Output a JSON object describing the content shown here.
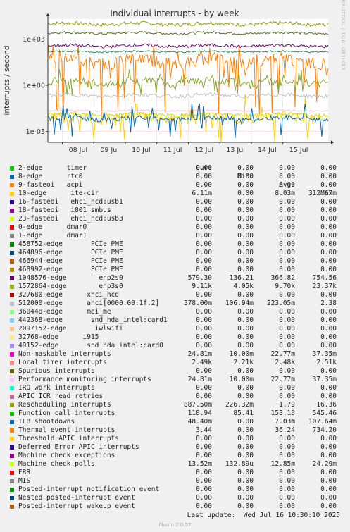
{
  "chart_data": {
    "type": "line",
    "title": "Individual interrupts - by week",
    "ylabel": "interrupts / second",
    "y_scale": "log",
    "ylim": [
      0.0002,
      20000
    ],
    "y_ticks": [
      {
        "value": 1000,
        "label": "1e+03"
      },
      {
        "value": 1,
        "label": "1e+00"
      },
      {
        "value": 0.001,
        "label": "1e-03"
      }
    ],
    "x_range": [
      "2025-07-07T13:00",
      "2025-07-16T10:30"
    ],
    "x_ticks": [
      {
        "date": "2025-07-08",
        "label": "08 Jul"
      },
      {
        "date": "2025-07-09",
        "label": "09 Jul"
      },
      {
        "date": "2025-07-10",
        "label": "10 Jul"
      },
      {
        "date": "2025-07-11",
        "label": "11 Jul"
      },
      {
        "date": "2025-07-12",
        "label": "12 Jul"
      },
      {
        "date": "2025-07-13",
        "label": "13 Jul"
      },
      {
        "date": "2025-07-14",
        "label": "14 Jul"
      },
      {
        "date": "2025-07-15",
        "label": "15 Jul"
      }
    ],
    "grid": true,
    "plotted_series": [
      {
        "name": "1572864-edge",
        "color": "#96a000",
        "level": 9700,
        "spread": 0.12
      },
      {
        "name": "Local timer interrupts",
        "color": "#556b2f",
        "level": 2480,
        "spread": 0.08
      },
      {
        "name": "Thermal event interrupts",
        "color": "#ff7f00",
        "level": 36.24,
        "spread": 0.4,
        "min": 0.003,
        "max": 734.2
      },
      {
        "name": "Rescheduling interrupts",
        "color": "#87a830",
        "level": 1.79,
        "spread": 0.25,
        "min": 0.226,
        "max": 16.36
      },
      {
        "name": "Function call interrupts",
        "color": "#2e8b57",
        "level": 153.18,
        "spread": 0.05
      },
      {
        "name": "1048576-edge",
        "color": "#6a0f6a",
        "level": 366.82,
        "spread": 0.1
      },
      {
        "name": "10-edge",
        "color": "#ffcc00",
        "level": 0.008,
        "spread": 0.3,
        "min": 0.0002,
        "max": 0.313
      },
      {
        "name": "Performance monitoring interrupts",
        "color": "#ffbfef",
        "level": 0.0228,
        "spread": 0.05
      },
      {
        "name": "ahci[0000:00:1f.2]",
        "color": "#c0c0c0",
        "level": 0.223,
        "spread": 0.12
      },
      {
        "name": "Machine check polls",
        "color": "#cce000",
        "level": 0.0128,
        "spread": 0.1
      },
      {
        "name": "TLB shootdowns",
        "color": "#0066b3",
        "level": 0.007,
        "spread": 0.15,
        "min": 0.0003,
        "max": 0.108
      }
    ],
    "legend_header": {
      "cur": "Cur:",
      "min": "Min:",
      "avg": "Avg:",
      "max": "Max:"
    },
    "legend": [
      {
        "label": "2-edge      timer",
        "color": "#00cc00",
        "cur": "0.00",
        "min": "0.00",
        "avg": "0.00",
        "max": "0.00"
      },
      {
        "label": "8-edge      rtc0",
        "color": "#0066b3",
        "cur": "0.00",
        "min": "0.00",
        "avg": "0.00",
        "max": "0.00"
      },
      {
        "label": "9-fasteoi   acpi",
        "color": "#ff8000",
        "cur": "0.00",
        "min": "0.00",
        "avg": "0.00",
        "max": "0.00"
      },
      {
        "label": "10-edge      ite-cir",
        "color": "#ffcc00",
        "cur": "6.11m",
        "min": "0.00",
        "avg": "8.03m",
        "max": "312.67m"
      },
      {
        "label": "16-fasteoi   ehci_hcd:usb1",
        "color": "#330099",
        "cur": "0.00",
        "min": "0.00",
        "avg": "0.00",
        "max": "0.00"
      },
      {
        "label": "18-fasteoi   i801_smbus",
        "color": "#990099",
        "cur": "0.00",
        "min": "0.00",
        "avg": "0.00",
        "max": "0.00"
      },
      {
        "label": "23-fasteoi   ehci_hcd:usb3",
        "color": "#ccff00",
        "cur": "0.00",
        "min": "0.00",
        "avg": "0.00",
        "max": "0.00"
      },
      {
        "label": "0-edge      dmar0",
        "color": "#ff0000",
        "cur": "0.00",
        "min": "0.00",
        "avg": "0.00",
        "max": "0.00"
      },
      {
        "label": "1-edge      dmar1",
        "color": "#808080",
        "cur": "0.00",
        "min": "0.00",
        "avg": "0.00",
        "max": "0.00"
      },
      {
        "label": "458752-edge       PCIe PME",
        "color": "#008f00",
        "cur": "0.00",
        "min": "0.00",
        "avg": "0.00",
        "max": "0.00"
      },
      {
        "label": "464896-edge       PCIe PME",
        "color": "#00487d",
        "cur": "0.00",
        "min": "0.00",
        "avg": "0.00",
        "max": "0.00"
      },
      {
        "label": "466944-edge       PCIe PME",
        "color": "#b35a00",
        "cur": "0.00",
        "min": "0.00",
        "avg": "0.00",
        "max": "0.00"
      },
      {
        "label": "468992-edge       PCIe PME",
        "color": "#b38f00",
        "cur": "0.00",
        "min": "0.00",
        "avg": "0.00",
        "max": "0.00"
      },
      {
        "label": "1048576-edge        enp2s0",
        "color": "#6b006b",
        "cur": "579.30",
        "min": "136.21",
        "avg": "366.82",
        "max": "754.56"
      },
      {
        "label": "1572864-edge        enp3s0",
        "color": "#8fb300",
        "cur": "9.11k",
        "min": "4.05k",
        "avg": "9.70k",
        "max": "23.37k"
      },
      {
        "label": "327680-edge      xhci_hcd",
        "color": "#b30000",
        "cur": "0.00",
        "min": "0.00",
        "avg": "0.00",
        "max": "0.00"
      },
      {
        "label": "512000-edge      ahci[0000:00:1f.2]",
        "color": "#bebebe",
        "cur": "378.00m",
        "min": "106.94m",
        "avg": "223.05m",
        "max": "2.38"
      },
      {
        "label": "360448-edge      mei_me",
        "color": "#80ff80",
        "cur": "0.00",
        "min": "0.00",
        "avg": "0.00",
        "max": "0.00"
      },
      {
        "label": "442368-edge       snd_hda_intel:card1",
        "color": "#80c9ff",
        "cur": "0.00",
        "min": "0.00",
        "avg": "0.00",
        "max": "0.00"
      },
      {
        "label": "2097152-edge       iwlwifi",
        "color": "#ffc080",
        "cur": "0.00",
        "min": "0.00",
        "avg": "0.00",
        "max": "0.00"
      },
      {
        "label": "32768-edge      i915",
        "color": "#ffe680",
        "cur": "0.00",
        "min": "0.00",
        "avg": "0.00",
        "max": "0.00"
      },
      {
        "label": "49152-edge       snd_hda_intel:card0",
        "color": "#aa80ff",
        "cur": "0.00",
        "min": "0.00",
        "avg": "0.00",
        "max": "0.00"
      },
      {
        "label": "Non-maskable interrupts",
        "color": "#ee00cc",
        "cur": "24.81m",
        "min": "10.00m",
        "avg": "22.77m",
        "max": "37.35m"
      },
      {
        "label": "Local timer interrupts",
        "color": "#ff8080",
        "cur": "2.49k",
        "min": "2.21k",
        "avg": "2.48k",
        "max": "2.51k"
      },
      {
        "label": "Spurious interrupts",
        "color": "#666600",
        "cur": "0.00",
        "min": "0.00",
        "avg": "0.00",
        "max": "0.00"
      },
      {
        "label": "Performance monitoring interrupts",
        "color": "#ffbfff",
        "cur": "24.81m",
        "min": "10.00m",
        "avg": "22.77m",
        "max": "37.35m"
      },
      {
        "label": "IRQ work interrupts",
        "color": "#00ffcc",
        "cur": "0.00",
        "min": "0.00",
        "avg": "0.00",
        "max": "0.00"
      },
      {
        "label": "APIC ICR read retries",
        "color": "#cc6699",
        "cur": "0.00",
        "min": "0.00",
        "avg": "0.00",
        "max": "0.00"
      },
      {
        "label": "Rescheduling interrupts",
        "color": "#999900",
        "cur": "887.50m",
        "min": "226.32m",
        "avg": "1.79",
        "max": "16.36"
      },
      {
        "label": "Function call interrupts",
        "color": "#00cc00",
        "cur": "118.94",
        "min": "85.41",
        "avg": "153.18",
        "max": "545.46"
      },
      {
        "label": "TLB shootdowns",
        "color": "#0066b3",
        "cur": "48.40m",
        "min": "0.00",
        "avg": "7.03m",
        "max": "107.64m"
      },
      {
        "label": "Thermal event interrupts",
        "color": "#ff8000",
        "cur": "3.44",
        "min": "0.00",
        "avg": "36.24",
        "max": "734.20"
      },
      {
        "label": "Threshold APIC interrupts",
        "color": "#ffcc00",
        "cur": "0.00",
        "min": "0.00",
        "avg": "0.00",
        "max": "0.00"
      },
      {
        "label": "Deferred Error APIC interrupts",
        "color": "#330099",
        "cur": "0.00",
        "min": "0.00",
        "avg": "0.00",
        "max": "0.00"
      },
      {
        "label": "Machine check exceptions",
        "color": "#990099",
        "cur": "0.00",
        "min": "0.00",
        "avg": "0.00",
        "max": "0.00"
      },
      {
        "label": "Machine check polls",
        "color": "#ccff00",
        "cur": "13.52m",
        "min": "132.89u",
        "avg": "12.85m",
        "max": "24.29m"
      },
      {
        "label": "ERR",
        "color": "#ff0000",
        "cur": "0.00",
        "min": "0.00",
        "avg": "0.00",
        "max": "0.00"
      },
      {
        "label": "MIS",
        "color": "#808080",
        "cur": "0.00",
        "min": "0.00",
        "avg": "0.00",
        "max": "0.00"
      },
      {
        "label": "Posted-interrupt notification event",
        "color": "#008f00",
        "cur": "0.00",
        "min": "0.00",
        "avg": "0.00",
        "max": "0.00"
      },
      {
        "label": "Nested posted-interrupt event",
        "color": "#00487d",
        "cur": "0.00",
        "min": "0.00",
        "avg": "0.00",
        "max": "0.00"
      },
      {
        "label": "Posted-interrupt wakeup event",
        "color": "#b35a00",
        "cur": "0.00",
        "min": "0.00",
        "avg": "0.00",
        "max": "0.00"
      }
    ]
  },
  "footer": {
    "last_update": "Last update:  Wed Jul 16 10:30:10 2025",
    "munin_version": "Munin 2.0.57",
    "side_text": "RRDTOOL / TOBI OETIKER"
  },
  "colors": {
    "background": "#f0f0f0",
    "plot_background": "#ffffff",
    "grid": "#e0d0d0",
    "axis": "#333333"
  }
}
